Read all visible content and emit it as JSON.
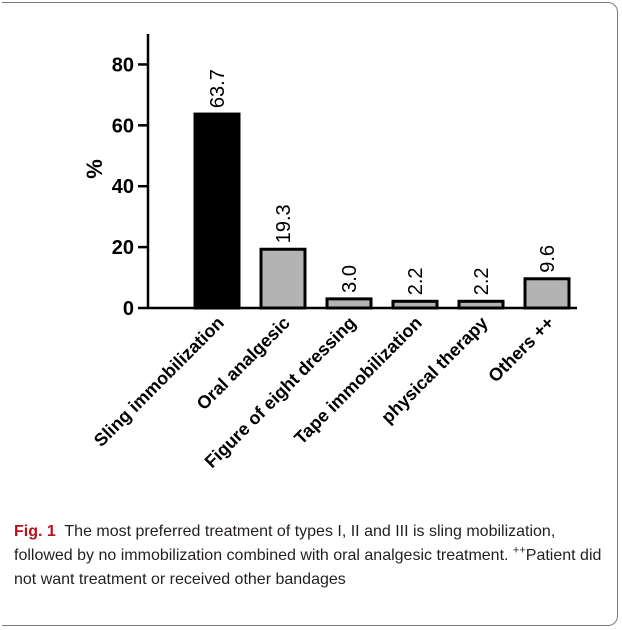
{
  "chart_data": {
    "type": "bar",
    "categories": [
      "Sling immobilization",
      "Oral analgesic",
      "Figure of eight dressing",
      "Tape immobilization",
      "physical therapy",
      "Others ++"
    ],
    "values": [
      63.7,
      19.3,
      3.0,
      2.2,
      2.2,
      9.6
    ],
    "value_labels": [
      "63.7",
      "19.3",
      "3.0",
      "2.2",
      "2.2",
      "9.6"
    ],
    "bar_colors": [
      "#000000",
      "#b3b3b3",
      "#b3b3b3",
      "#b3b3b3",
      "#b3b3b3",
      "#b3b3b3"
    ],
    "ylabel": "%",
    "xlabel": "",
    "ylim": [
      0,
      90
    ],
    "yticks": [
      0,
      20,
      40,
      60,
      80
    ],
    "grid": false
  },
  "caption": {
    "label": "Fig. 1",
    "text_before": "The most preferred treatment of types I, II and III is sling mobilization, followed by no immobilization combined with oral analgesic treatment.",
    "superscript": "++",
    "text_after": "Patient did not want treatment or received other bandages"
  },
  "colors": {
    "caption_label": "#b5121b",
    "frame": "#7a7a7a"
  }
}
